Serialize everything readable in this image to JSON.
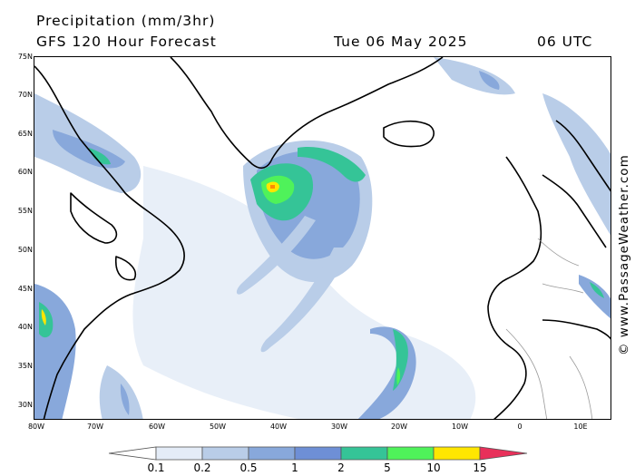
{
  "header": {
    "title": "Precipitation (mm/3hr)",
    "model": "GFS 120 Hour Forecast",
    "date": "Tue 06 May 2025",
    "time": "06 UTC"
  },
  "map": {
    "lat_labels": [
      "75N",
      "70N",
      "65N",
      "60N",
      "55N",
      "50N",
      "45N",
      "40N",
      "35N",
      "30N"
    ],
    "lon_labels": [
      "80W",
      "70W",
      "60W",
      "50W",
      "40W",
      "30W",
      "20W",
      "10W",
      "0",
      "10E"
    ],
    "land_color": "#ffffff",
    "coastline_color": "#000000",
    "border_color": "#9a9a9a"
  },
  "legend": {
    "units": "mm/3hr",
    "ticks": [
      "0.1",
      "0.2",
      "0.5",
      "1",
      "2",
      "5",
      "10",
      "15"
    ],
    "colors": [
      "#ffffff",
      "#e4ecf7",
      "#b9cde8",
      "#88a8db",
      "#6e8fd6",
      "#35c497",
      "#4ff25a",
      "#ffe600",
      "#ff8c00",
      "#e8305a"
    ]
  },
  "watermark": "© www.PassageWeather.com"
}
